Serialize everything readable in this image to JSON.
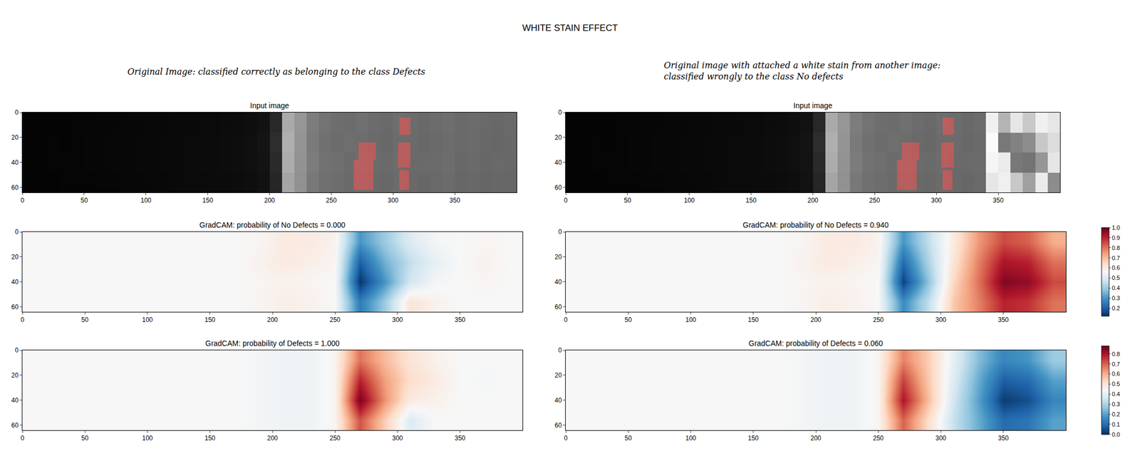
{
  "title": "WHITE STAIN EFFECT",
  "captions": [
    {
      "lines": [
        "Original Image: classified correctly as belonging to the class Defects"
      ]
    },
    {
      "lines": [
        "Original image with attached a white stain from another image:",
        "classified wrongly to the class No defects"
      ]
    }
  ],
  "chart_data": [
    {
      "type": "image",
      "title": "Input image",
      "xlim": [
        0,
        400
      ],
      "ylim": [
        64,
        0
      ],
      "xticks": [
        0,
        50,
        100,
        150,
        200,
        250,
        300,
        350
      ],
      "yticks": [
        0,
        20,
        40,
        60
      ],
      "zlim": [
        0,
        255
      ],
      "x": [
        5,
        15,
        25,
        35,
        45,
        55,
        65,
        75,
        85,
        95,
        105,
        115,
        125,
        135,
        145,
        155,
        165,
        175,
        185,
        195,
        205,
        215,
        225,
        235,
        245,
        255,
        265,
        275,
        285,
        295,
        305,
        315,
        325,
        335,
        345,
        355,
        365,
        375,
        385,
        395
      ],
      "y": [
        8,
        24,
        40,
        56
      ],
      "cells": [
        [
          4,
          4,
          4,
          4,
          5,
          5,
          6,
          6,
          7,
          7,
          8,
          8,
          9,
          9,
          10,
          10,
          11,
          12,
          14,
          18,
          40,
          170,
          150,
          125,
          115,
          110,
          108,
          112,
          108,
          105,
          110,
          108,
          105,
          108,
          110,
          106,
          108,
          105,
          104,
          106
        ],
        [
          4,
          4,
          5,
          4,
          5,
          6,
          6,
          7,
          7,
          8,
          8,
          9,
          9,
          10,
          10,
          11,
          12,
          13,
          15,
          20,
          45,
          175,
          148,
          122,
          112,
          108,
          110,
          109,
          106,
          104,
          108,
          107,
          104,
          106,
          108,
          105,
          107,
          104,
          103,
          105
        ],
        [
          4,
          4,
          5,
          5,
          5,
          6,
          6,
          7,
          7,
          8,
          8,
          9,
          9,
          10,
          11,
          11,
          12,
          13,
          15,
          19,
          42,
          172,
          146,
          124,
          114,
          111,
          107,
          110,
          107,
          106,
          109,
          106,
          106,
          107,
          109,
          104,
          106,
          103,
          105,
          104
        ],
        [
          4,
          4,
          4,
          5,
          5,
          5,
          6,
          6,
          7,
          7,
          8,
          8,
          9,
          10,
          10,
          11,
          11,
          12,
          14,
          18,
          38,
          165,
          145,
          120,
          112,
          109,
          106,
          108,
          105,
          104,
          107,
          105,
          103,
          105,
          107,
          103,
          105,
          102,
          103,
          103
        ]
      ],
      "highlighted_regions": [
        {
          "x0": 272,
          "x1": 286,
          "y0": 24,
          "y1": 38
        },
        {
          "x0": 268,
          "x1": 284,
          "y0": 38,
          "y1": 62
        },
        {
          "x0": 305,
          "x1": 314,
          "y0": 4,
          "y1": 18
        },
        {
          "x0": 304,
          "x1": 314,
          "y0": 24,
          "y1": 44
        },
        {
          "x0": 305,
          "x1": 313,
          "y0": 46,
          "y1": 62
        }
      ]
    },
    {
      "type": "heatmap",
      "title": "GradCAM: probability of No Defects = 0.000",
      "xlim": [
        0,
        400
      ],
      "ylim": [
        64,
        0
      ],
      "xticks": [
        0,
        50,
        100,
        150,
        200,
        250,
        300,
        350
      ],
      "yticks": [
        0,
        20,
        40,
        60
      ],
      "zlim": [
        0.12,
        1
      ],
      "x": [
        10,
        30,
        50,
        70,
        90,
        110,
        130,
        150,
        170,
        190,
        210,
        230,
        250,
        270,
        290,
        310,
        330,
        350,
        370,
        390
      ],
      "y": [
        8,
        24,
        40,
        56
      ],
      "cells": [
        [
          0.56,
          0.56,
          0.56,
          0.56,
          0.56,
          0.56,
          0.56,
          0.56,
          0.56,
          0.57,
          0.6,
          0.6,
          0.58,
          0.3,
          0.4,
          0.5,
          0.55,
          0.56,
          0.57,
          0.56
        ],
        [
          0.56,
          0.56,
          0.56,
          0.56,
          0.56,
          0.56,
          0.56,
          0.56,
          0.56,
          0.58,
          0.6,
          0.59,
          0.57,
          0.2,
          0.35,
          0.45,
          0.52,
          0.56,
          0.58,
          0.56
        ],
        [
          0.56,
          0.56,
          0.56,
          0.56,
          0.56,
          0.56,
          0.56,
          0.56,
          0.56,
          0.57,
          0.58,
          0.57,
          0.56,
          0.13,
          0.3,
          0.48,
          0.55,
          0.56,
          0.57,
          0.56
        ],
        [
          0.56,
          0.56,
          0.56,
          0.56,
          0.56,
          0.56,
          0.56,
          0.56,
          0.56,
          0.57,
          0.59,
          0.58,
          0.56,
          0.25,
          0.4,
          0.62,
          0.58,
          0.56,
          0.56,
          0.56
        ]
      ]
    },
    {
      "type": "heatmap",
      "title": "GradCAM: probability of Defects = 1.000",
      "xlim": [
        0,
        400
      ],
      "ylim": [
        64,
        0
      ],
      "xticks": [
        0,
        50,
        100,
        150,
        200,
        250,
        300,
        350
      ],
      "yticks": [
        0,
        20,
        40,
        60
      ],
      "zlim": [
        0,
        0.88
      ],
      "x": [
        10,
        30,
        50,
        70,
        90,
        110,
        130,
        150,
        170,
        190,
        210,
        230,
        250,
        270,
        290,
        310,
        330,
        350,
        370,
        390
      ],
      "y": [
        8,
        24,
        40,
        56
      ],
      "cells": [
        [
          0.44,
          0.44,
          0.44,
          0.44,
          0.44,
          0.44,
          0.44,
          0.44,
          0.44,
          0.43,
          0.42,
          0.42,
          0.45,
          0.68,
          0.58,
          0.5,
          0.46,
          0.44,
          0.44,
          0.44
        ],
        [
          0.44,
          0.44,
          0.44,
          0.44,
          0.44,
          0.44,
          0.44,
          0.44,
          0.44,
          0.43,
          0.42,
          0.42,
          0.45,
          0.78,
          0.62,
          0.52,
          0.48,
          0.44,
          0.43,
          0.44
        ],
        [
          0.44,
          0.44,
          0.44,
          0.44,
          0.44,
          0.44,
          0.44,
          0.44,
          0.44,
          0.43,
          0.42,
          0.42,
          0.45,
          0.86,
          0.64,
          0.48,
          0.46,
          0.44,
          0.44,
          0.44
        ],
        [
          0.44,
          0.44,
          0.44,
          0.44,
          0.44,
          0.44,
          0.44,
          0.44,
          0.44,
          0.43,
          0.42,
          0.42,
          0.45,
          0.72,
          0.55,
          0.38,
          0.44,
          0.44,
          0.44,
          0.44
        ]
      ]
    },
    {
      "type": "image",
      "title": "Input image",
      "xlim": [
        0,
        400
      ],
      "ylim": [
        64,
        0
      ],
      "xticks": [
        0,
        50,
        100,
        150,
        200,
        250,
        300,
        350
      ],
      "yticks": [
        0,
        20,
        40,
        60
      ],
      "zlim": [
        0,
        255
      ],
      "x": [
        5,
        15,
        25,
        35,
        45,
        55,
        65,
        75,
        85,
        95,
        105,
        115,
        125,
        135,
        145,
        155,
        165,
        175,
        185,
        195,
        205,
        215,
        225,
        235,
        245,
        255,
        265,
        275,
        285,
        295,
        305,
        315,
        325,
        335,
        345,
        355,
        365,
        375,
        385,
        395
      ],
      "y": [
        8,
        24,
        40,
        56
      ],
      "cells": [
        [
          4,
          4,
          4,
          4,
          5,
          5,
          6,
          6,
          7,
          7,
          8,
          8,
          9,
          9,
          10,
          10,
          11,
          12,
          14,
          18,
          40,
          170,
          150,
          125,
          115,
          110,
          108,
          112,
          108,
          105,
          110,
          108,
          105,
          108,
          240,
          180,
          230,
          200,
          240,
          230
        ],
        [
          4,
          4,
          5,
          4,
          5,
          6,
          6,
          7,
          7,
          8,
          8,
          9,
          9,
          10,
          10,
          11,
          12,
          13,
          15,
          20,
          45,
          175,
          148,
          122,
          112,
          108,
          110,
          109,
          106,
          104,
          108,
          107,
          104,
          106,
          250,
          120,
          130,
          140,
          200,
          220
        ],
        [
          4,
          4,
          5,
          5,
          5,
          6,
          6,
          7,
          7,
          8,
          8,
          9,
          9,
          10,
          11,
          11,
          12,
          13,
          15,
          19,
          42,
          172,
          146,
          124,
          114,
          111,
          107,
          110,
          107,
          106,
          109,
          106,
          106,
          107,
          245,
          235,
          120,
          115,
          150,
          230
        ],
        [
          4,
          4,
          4,
          5,
          5,
          5,
          6,
          6,
          7,
          7,
          8,
          8,
          9,
          10,
          10,
          11,
          11,
          12,
          14,
          18,
          38,
          165,
          145,
          120,
          112,
          109,
          106,
          108,
          105,
          104,
          107,
          105,
          103,
          105,
          230,
          240,
          200,
          160,
          235,
          140
        ]
      ],
      "highlighted_regions": [
        {
          "x0": 272,
          "x1": 286,
          "y0": 24,
          "y1": 38
        },
        {
          "x0": 268,
          "x1": 284,
          "y0": 38,
          "y1": 62
        },
        {
          "x0": 305,
          "x1": 314,
          "y0": 4,
          "y1": 18
        },
        {
          "x0": 304,
          "x1": 314,
          "y0": 24,
          "y1": 44
        },
        {
          "x0": 305,
          "x1": 313,
          "y0": 46,
          "y1": 62
        }
      ]
    },
    {
      "type": "heatmap",
      "title": "GradCAM: probability of No Defects = 0.940",
      "xlim": [
        0,
        400
      ],
      "ylim": [
        64,
        0
      ],
      "xticks": [
        0,
        50,
        100,
        150,
        200,
        250,
        300,
        350
      ],
      "yticks": [
        0,
        20,
        40,
        60
      ],
      "zlim": [
        0.12,
        1
      ],
      "colorbar_ticks": [
        0.2,
        0.3,
        0.4,
        0.5,
        0.6,
        0.7,
        0.8,
        0.9,
        {
          "value": 1,
          "label": "1.0"
        }
      ],
      "x": [
        10,
        30,
        50,
        70,
        90,
        110,
        130,
        150,
        170,
        190,
        210,
        230,
        250,
        270,
        290,
        310,
        330,
        350,
        370,
        390
      ],
      "y": [
        8,
        24,
        40,
        56
      ],
      "cells": [
        [
          0.56,
          0.56,
          0.56,
          0.56,
          0.56,
          0.56,
          0.56,
          0.56,
          0.56,
          0.57,
          0.6,
          0.6,
          0.58,
          0.3,
          0.45,
          0.6,
          0.75,
          0.85,
          0.82,
          0.72
        ],
        [
          0.56,
          0.56,
          0.56,
          0.56,
          0.56,
          0.56,
          0.56,
          0.56,
          0.56,
          0.58,
          0.6,
          0.59,
          0.57,
          0.22,
          0.42,
          0.62,
          0.78,
          0.92,
          0.9,
          0.8
        ],
        [
          0.56,
          0.56,
          0.56,
          0.56,
          0.56,
          0.56,
          0.56,
          0.56,
          0.56,
          0.57,
          0.58,
          0.57,
          0.56,
          0.15,
          0.38,
          0.65,
          0.8,
          0.97,
          0.95,
          0.85
        ],
        [
          0.56,
          0.56,
          0.56,
          0.56,
          0.56,
          0.56,
          0.56,
          0.56,
          0.56,
          0.57,
          0.59,
          0.58,
          0.56,
          0.28,
          0.45,
          0.68,
          0.78,
          0.9,
          0.88,
          0.8
        ]
      ]
    },
    {
      "type": "heatmap",
      "title": "GradCAM: probability of Defects = 0.060",
      "xlim": [
        0,
        400
      ],
      "ylim": [
        64,
        0
      ],
      "xticks": [
        0,
        50,
        100,
        150,
        200,
        250,
        300,
        350
      ],
      "yticks": [
        0,
        20,
        40,
        60
      ],
      "zlim": [
        0,
        0.88
      ],
      "colorbar_ticks": [
        {
          "value": 0,
          "label": "0.0"
        },
        0.1,
        0.2,
        0.3,
        0.4,
        0.5,
        0.6,
        0.7,
        0.8
      ],
      "x": [
        10,
        30,
        50,
        70,
        90,
        110,
        130,
        150,
        170,
        190,
        210,
        230,
        250,
        270,
        290,
        310,
        330,
        350,
        370,
        390
      ],
      "y": [
        8,
        24,
        40,
        56
      ],
      "cells": [
        [
          0.44,
          0.44,
          0.44,
          0.44,
          0.44,
          0.44,
          0.44,
          0.44,
          0.44,
          0.43,
          0.42,
          0.42,
          0.45,
          0.66,
          0.55,
          0.4,
          0.25,
          0.15,
          0.18,
          0.28
        ],
        [
          0.44,
          0.44,
          0.44,
          0.44,
          0.44,
          0.44,
          0.44,
          0.44,
          0.44,
          0.43,
          0.42,
          0.42,
          0.45,
          0.74,
          0.56,
          0.38,
          0.22,
          0.08,
          0.1,
          0.2
        ],
        [
          0.44,
          0.44,
          0.44,
          0.44,
          0.44,
          0.44,
          0.44,
          0.44,
          0.44,
          0.43,
          0.42,
          0.42,
          0.45,
          0.8,
          0.58,
          0.36,
          0.2,
          0.02,
          0.05,
          0.15
        ],
        [
          0.44,
          0.44,
          0.44,
          0.44,
          0.44,
          0.44,
          0.44,
          0.44,
          0.44,
          0.43,
          0.42,
          0.42,
          0.45,
          0.7,
          0.52,
          0.34,
          0.22,
          0.1,
          0.12,
          0.2
        ]
      ]
    }
  ]
}
